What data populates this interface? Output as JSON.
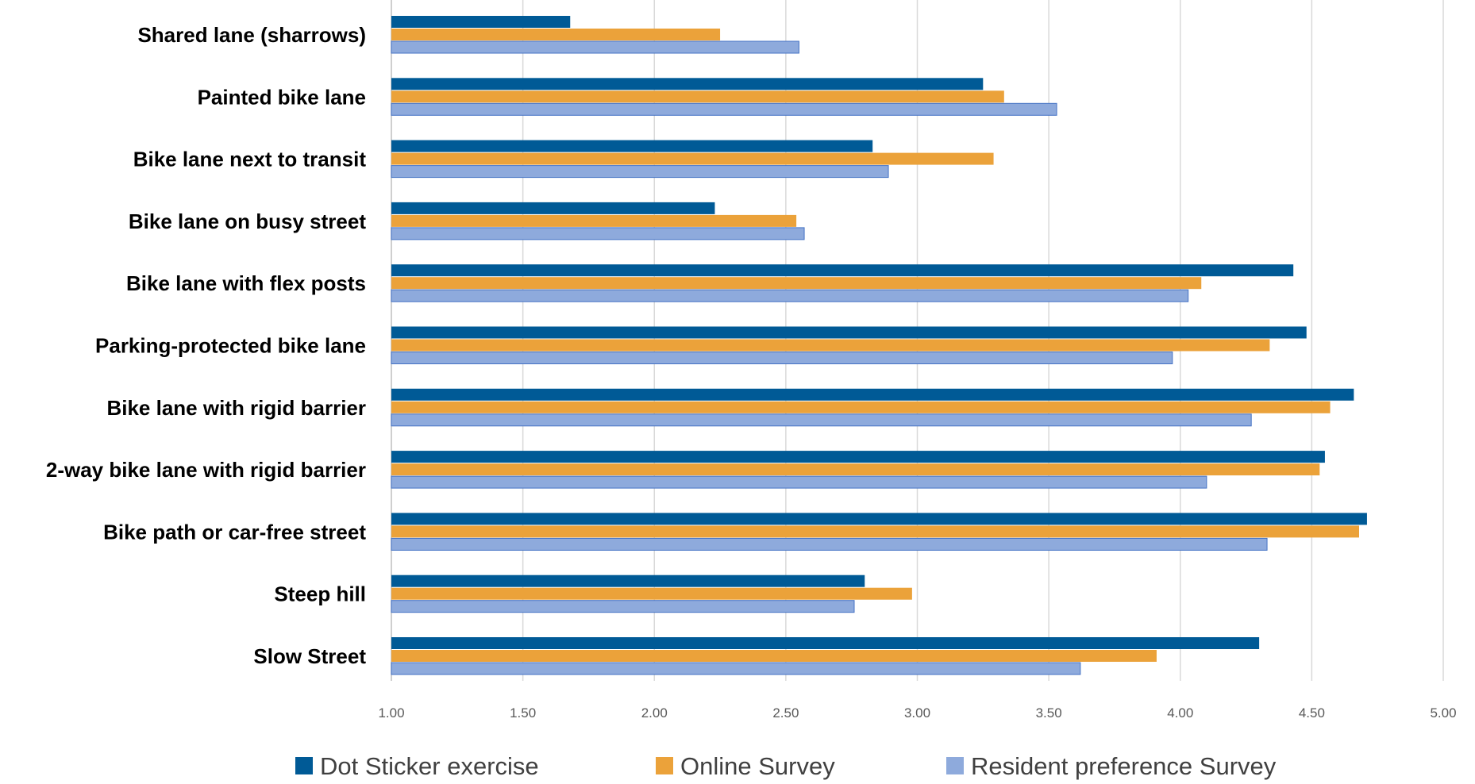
{
  "chart_data": {
    "type": "bar",
    "orientation": "horizontal",
    "categories": [
      "Shared lane (sharrows)",
      "Painted bike lane",
      "Bike lane next to transit",
      "Bike lane on busy street",
      "Bike lane with flex posts",
      "Parking-protected bike lane",
      "Bike lane with rigid barrier",
      "2-way bike lane with rigid barrier",
      "Bike path or car-free street",
      "Steep hill",
      "Slow Street"
    ],
    "series": [
      {
        "name": "Dot Sticker exercise",
        "color": "#005a96",
        "values": [
          1.68,
          3.25,
          2.83,
          2.23,
          4.43,
          4.48,
          4.66,
          4.55,
          4.71,
          2.8,
          4.3
        ]
      },
      {
        "name": "Online Survey",
        "color": "#eba23a",
        "values": [
          2.25,
          3.33,
          3.29,
          2.54,
          4.08,
          4.34,
          4.57,
          4.53,
          4.68,
          2.98,
          3.91
        ]
      },
      {
        "name": "Resident preference Survey",
        "color": "#8eaadc",
        "values": [
          2.55,
          3.53,
          2.89,
          2.57,
          4.03,
          3.97,
          4.27,
          4.1,
          4.33,
          2.76,
          3.62
        ]
      }
    ],
    "xlim": [
      1.0,
      5.0
    ],
    "xticks": [
      "1.00",
      "1.50",
      "2.00",
      "2.50",
      "3.00",
      "3.50",
      "4.00",
      "4.50",
      "5.00"
    ],
    "title": "",
    "xlabel": "",
    "ylabel": "",
    "grid": "vertical",
    "legend": "bottom"
  }
}
